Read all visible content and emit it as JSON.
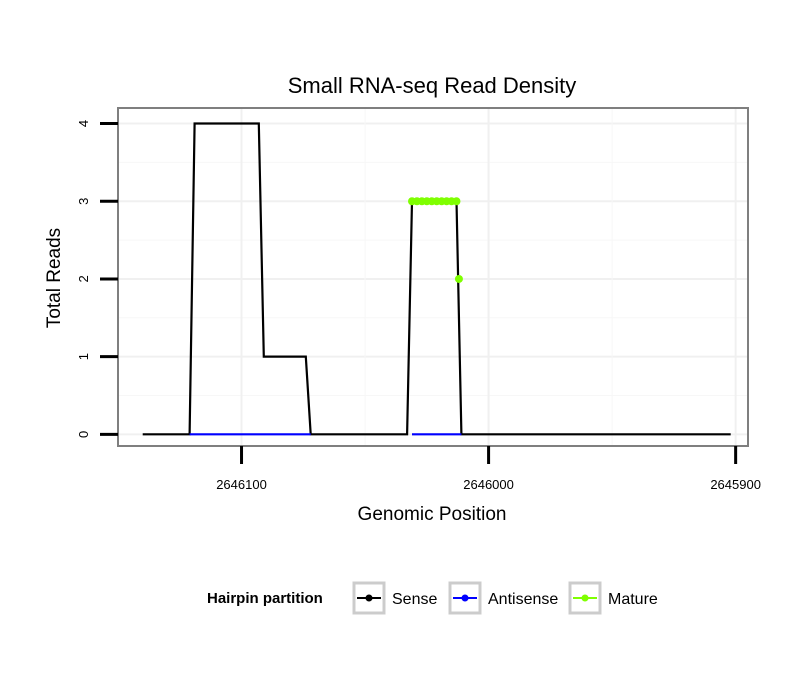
{
  "chart_data": {
    "type": "line",
    "title": "Small RNA-seq Read Density",
    "xlabel": "Genomic Position",
    "ylabel": "Total Reads",
    "xlim": [
      2646150,
      2645895
    ],
    "x_reversed": true,
    "ylim": [
      -0.15,
      4.2
    ],
    "x_ticks": [
      2646100,
      2646000,
      2645900
    ],
    "x_tick_labels": [
      "2646100",
      "2646000",
      "2645900"
    ],
    "y_ticks": [
      0,
      1,
      2,
      3,
      4
    ],
    "y_tick_labels": [
      "0",
      "1",
      "2",
      "3",
      "4"
    ],
    "grid": true,
    "legend": {
      "title": "Hairpin partition",
      "position": "bottom",
      "entries": [
        {
          "name": "Sense",
          "color": "#000000"
        },
        {
          "name": "Antisense",
          "color": "#0000ff"
        },
        {
          "name": "Mature",
          "color": "#7fff00"
        }
      ]
    },
    "series": [
      {
        "name": "Sense",
        "color": "#000000",
        "style": "line",
        "x": [
          2646140,
          2646121,
          2646119,
          2646093,
          2646091,
          2646074,
          2646072,
          2646033,
          2646031,
          2646013,
          2646011,
          2645902
        ],
        "y": [
          0,
          0,
          4,
          4,
          1,
          1,
          0,
          0,
          3,
          3,
          0,
          0
        ]
      },
      {
        "name": "Antisense",
        "color": "#0000ff",
        "style": "line",
        "x": [
          2646121,
          2646072,
          2646072,
          2646031,
          2646031,
          2646011
        ],
        "y": [
          0,
          0,
          null,
          null,
          0,
          0
        ]
      },
      {
        "name": "Mature",
        "color": "#7fff00",
        "style": "points",
        "x": [
          2646031,
          2646029,
          2646027,
          2646025,
          2646023,
          2646021,
          2646019,
          2646017,
          2646015,
          2646013,
          2646012
        ],
        "y": [
          3,
          3,
          3,
          3,
          3,
          3,
          3,
          3,
          3,
          3,
          2
        ]
      }
    ]
  }
}
